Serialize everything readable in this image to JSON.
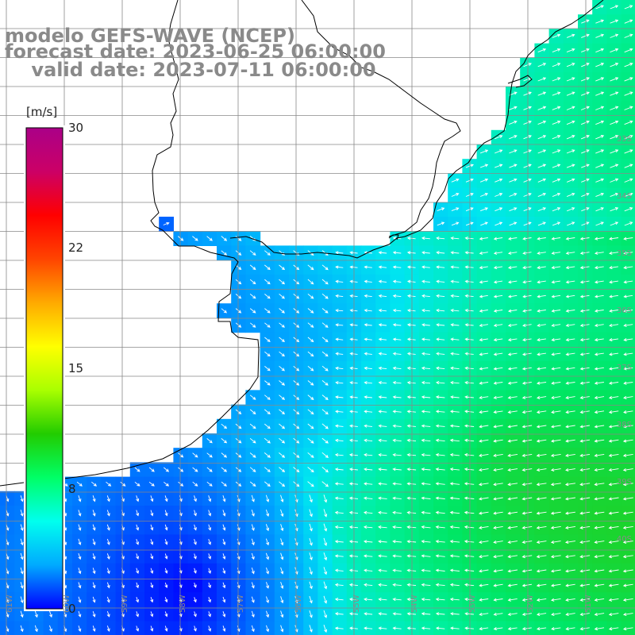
{
  "title": {
    "line1": "modelo GEFS-WAVE (NCEP)",
    "line2": "forecast date: 2023-06-25 06:00:00",
    "line3": "    valid date: 2023-07-11 06:00:00"
  },
  "colorbar": {
    "unit": "[m/s]",
    "ticks": [
      "30",
      "22",
      "15",
      "8",
      "0"
    ],
    "colors": [
      "#0000ff",
      "#00aaff",
      "#00ffee",
      "#00ff66",
      "#22cc00",
      "#aaff00",
      "#ffff00",
      "#ffaa00",
      "#ff4400",
      "#ff0000",
      "#cc0066",
      "#aa0088"
    ]
  },
  "grid": {
    "lat_labels": [
      "33S",
      "34S",
      "35S",
      "36S",
      "37S",
      "38S",
      "39S",
      "40S"
    ],
    "lon_labels": [
      "61W",
      "60W",
      "59W",
      "58W",
      "57W",
      "56W",
      "55W",
      "54W",
      "53W",
      "52W",
      "51W"
    ]
  },
  "colors": {
    "land": "#ffffff",
    "coastline": "#000000",
    "gridline": "#888888",
    "arrow": "#ffffff",
    "title_text": "#8a8a8a"
  }
}
